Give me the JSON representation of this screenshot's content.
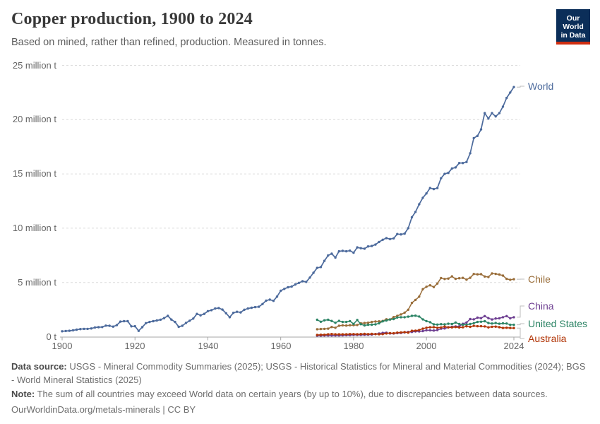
{
  "header": {
    "title": "Copper production, 1900 to 2024",
    "subtitle": "Based on mined, rather than refined, production. Measured in tonnes.",
    "logo": {
      "line1": "Our World",
      "line2": "in Data",
      "bg_color": "#0b2e59",
      "bar_color": "#cf2d10"
    }
  },
  "chart_data": {
    "type": "line",
    "title": "Copper production, 1900 to 2024",
    "xlabel": "",
    "ylabel": "",
    "unit": "million tonnes",
    "xlim": [
      1900,
      2024
    ],
    "ylim": [
      0,
      25
    ],
    "grid": "horizontal-dashed",
    "legend_position": "right-end-labels",
    "y_ticks": [
      {
        "value": 0,
        "label": "0 t"
      },
      {
        "value": 5,
        "label": "5 million t"
      },
      {
        "value": 10,
        "label": "10 million t"
      },
      {
        "value": 15,
        "label": "15 million t"
      },
      {
        "value": 20,
        "label": "20 million t"
      },
      {
        "value": 25,
        "label": "25 million t"
      }
    ],
    "x_ticks": [
      1900,
      1920,
      1940,
      1960,
      1980,
      2000,
      2024
    ],
    "series": [
      {
        "name": "World",
        "color": "#4C6A9C",
        "start_year": 1900,
        "values": [
          0.5,
          0.53,
          0.55,
          0.59,
          0.65,
          0.7,
          0.72,
          0.72,
          0.76,
          0.85,
          0.88,
          0.89,
          1.02,
          1.01,
          0.93,
          1.07,
          1.39,
          1.43,
          1.43,
          0.96,
          0.97,
          0.54,
          0.88,
          1.25,
          1.36,
          1.43,
          1.5,
          1.57,
          1.71,
          1.92,
          1.58,
          1.36,
          0.91,
          1.01,
          1.27,
          1.47,
          1.67,
          2.1,
          1.97,
          2.1,
          2.36,
          2.45,
          2.6,
          2.64,
          2.5,
          2.16,
          1.8,
          2.2,
          2.3,
          2.24,
          2.49,
          2.6,
          2.67,
          2.73,
          2.76,
          3.01,
          3.33,
          3.42,
          3.31,
          3.7,
          4.24,
          4.41,
          4.56,
          4.62,
          4.81,
          4.96,
          5.11,
          5.05,
          5.45,
          5.89,
          6.34,
          6.42,
          6.99,
          7.49,
          7.65,
          7.29,
          7.87,
          7.91,
          7.87,
          7.93,
          7.74,
          8.23,
          8.16,
          8.11,
          8.32,
          8.36,
          8.49,
          8.73,
          8.93,
          9.09,
          9.0,
          9.06,
          9.46,
          9.43,
          9.5,
          10.0,
          11.0,
          11.5,
          12.2,
          12.8,
          13.2,
          13.7,
          13.6,
          13.7,
          14.6,
          15.0,
          15.1,
          15.5,
          15.6,
          16.0,
          16.0,
          16.1,
          16.9,
          18.3,
          18.5,
          19.1,
          20.6,
          20.1,
          20.6,
          20.3,
          20.6,
          21.2,
          22.0,
          22.5,
          23.0
        ]
      },
      {
        "name": "Chile",
        "color": "#996D39",
        "start_year": 1970,
        "values": [
          0.69,
          0.71,
          0.72,
          0.74,
          0.9,
          0.83,
          1.01,
          1.05,
          1.03,
          1.06,
          1.07,
          1.08,
          1.24,
          1.26,
          1.29,
          1.36,
          1.4,
          1.42,
          1.45,
          1.61,
          1.59,
          1.81,
          1.93,
          2.06,
          2.22,
          2.49,
          3.12,
          3.39,
          3.69,
          4.38,
          4.6,
          4.74,
          4.58,
          4.9,
          5.41,
          5.32,
          5.36,
          5.56,
          5.33,
          5.39,
          5.42,
          5.26,
          5.43,
          5.78,
          5.75,
          5.76,
          5.55,
          5.5,
          5.83,
          5.79,
          5.73,
          5.63,
          5.33,
          5.25,
          5.3
        ]
      },
      {
        "name": "China",
        "color": "#6D3E91",
        "start_year": 1970,
        "values": [
          0.1,
          0.1,
          0.11,
          0.11,
          0.11,
          0.12,
          0.12,
          0.13,
          0.14,
          0.15,
          0.17,
          0.17,
          0.17,
          0.18,
          0.19,
          0.2,
          0.25,
          0.3,
          0.35,
          0.37,
          0.3,
          0.3,
          0.33,
          0.35,
          0.4,
          0.44,
          0.44,
          0.49,
          0.49,
          0.52,
          0.59,
          0.59,
          0.57,
          0.61,
          0.74,
          0.76,
          0.87,
          0.92,
          0.95,
          0.96,
          1.19,
          1.31,
          1.63,
          1.6,
          1.76,
          1.71,
          1.9,
          1.71,
          1.59,
          1.68,
          1.7,
          1.8,
          1.9,
          1.7,
          1.8
        ]
      },
      {
        "name": "United States",
        "color": "#2C8465",
        "start_year": 1970,
        "values": [
          1.56,
          1.38,
          1.51,
          1.56,
          1.45,
          1.28,
          1.46,
          1.36,
          1.36,
          1.44,
          1.18,
          1.54,
          1.15,
          1.04,
          1.1,
          1.11,
          1.14,
          1.24,
          1.42,
          1.5,
          1.59,
          1.63,
          1.77,
          1.8,
          1.8,
          1.85,
          1.92,
          1.94,
          1.86,
          1.6,
          1.44,
          1.34,
          1.14,
          1.12,
          1.16,
          1.14,
          1.2,
          1.17,
          1.31,
          1.18,
          1.11,
          1.11,
          1.17,
          1.25,
          1.36,
          1.38,
          1.43,
          1.26,
          1.22,
          1.26,
          1.2,
          1.23,
          1.22,
          1.1,
          1.1
        ]
      },
      {
        "name": "Australia",
        "color": "#B13507",
        "start_year": 1970,
        "values": [
          0.16,
          0.18,
          0.18,
          0.22,
          0.25,
          0.22,
          0.22,
          0.22,
          0.22,
          0.24,
          0.24,
          0.23,
          0.25,
          0.26,
          0.24,
          0.26,
          0.24,
          0.23,
          0.24,
          0.3,
          0.33,
          0.32,
          0.38,
          0.4,
          0.42,
          0.38,
          0.55,
          0.56,
          0.61,
          0.74,
          0.83,
          0.87,
          0.88,
          0.83,
          0.85,
          0.93,
          0.86,
          0.86,
          0.89,
          0.85,
          0.87,
          0.96,
          0.91,
          1.0,
          0.97,
          0.97,
          0.95,
          0.86,
          0.92,
          0.93,
          0.88,
          0.81,
          0.83,
          0.81,
          0.8
        ]
      }
    ]
  },
  "footer": {
    "datasource_label": "Data source:",
    "datasource_text": " USGS - Mineral Commodity Summaries (2025); USGS - Historical Statistics for Mineral and Material Commodities (2024); BGS - World Mineral Statistics (2025)",
    "note_label": "Note:",
    "note_text": " The sum of all countries may exceed World data on certain years (by up to 10%), due to discrepancies between data sources.",
    "citation": "OurWorldinData.org/metals-minerals | CC BY"
  }
}
